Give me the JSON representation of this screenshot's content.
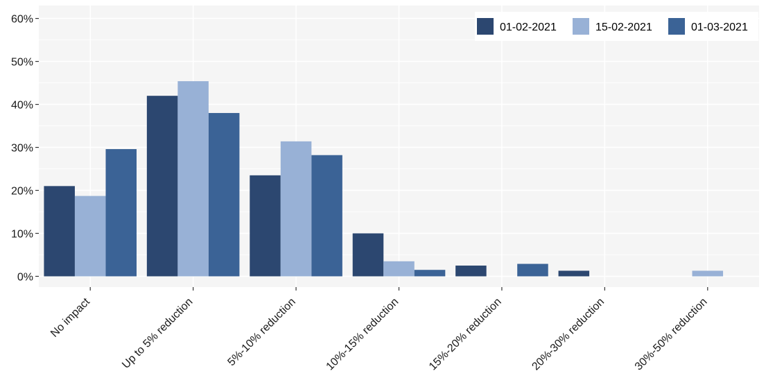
{
  "chart_data": {
    "type": "bar",
    "title": "",
    "xlabel": "",
    "ylabel": "",
    "categories": [
      "No impact",
      "Up to 5% reduction",
      "5%-10% reduction",
      "10%-15% reduction",
      "15%-20% reduction",
      "20%-30% reduction",
      "30%-50% reduction"
    ],
    "series": [
      {
        "name": "01-02-2021",
        "color": "#2c4770",
        "values": [
          21.0,
          42.0,
          23.5,
          10.0,
          2.5,
          1.3,
          0
        ]
      },
      {
        "name": "15-02-2021",
        "color": "#98b1d6",
        "values": [
          18.7,
          45.4,
          31.4,
          3.5,
          0,
          0,
          1.3
        ]
      },
      {
        "name": "01-03-2021",
        "color": "#3b6396",
        "values": [
          29.6,
          38.0,
          28.2,
          1.5,
          2.9,
          0,
          0
        ]
      }
    ],
    "ylim": [
      -2.5,
      63
    ],
    "yticks": [
      0,
      10,
      20,
      30,
      40,
      50,
      60
    ],
    "ytick_labels": [
      "0%",
      "10%",
      "20%",
      "30%",
      "40%",
      "50%",
      "60%"
    ],
    "grid": true,
    "legend_position": "top-right"
  }
}
